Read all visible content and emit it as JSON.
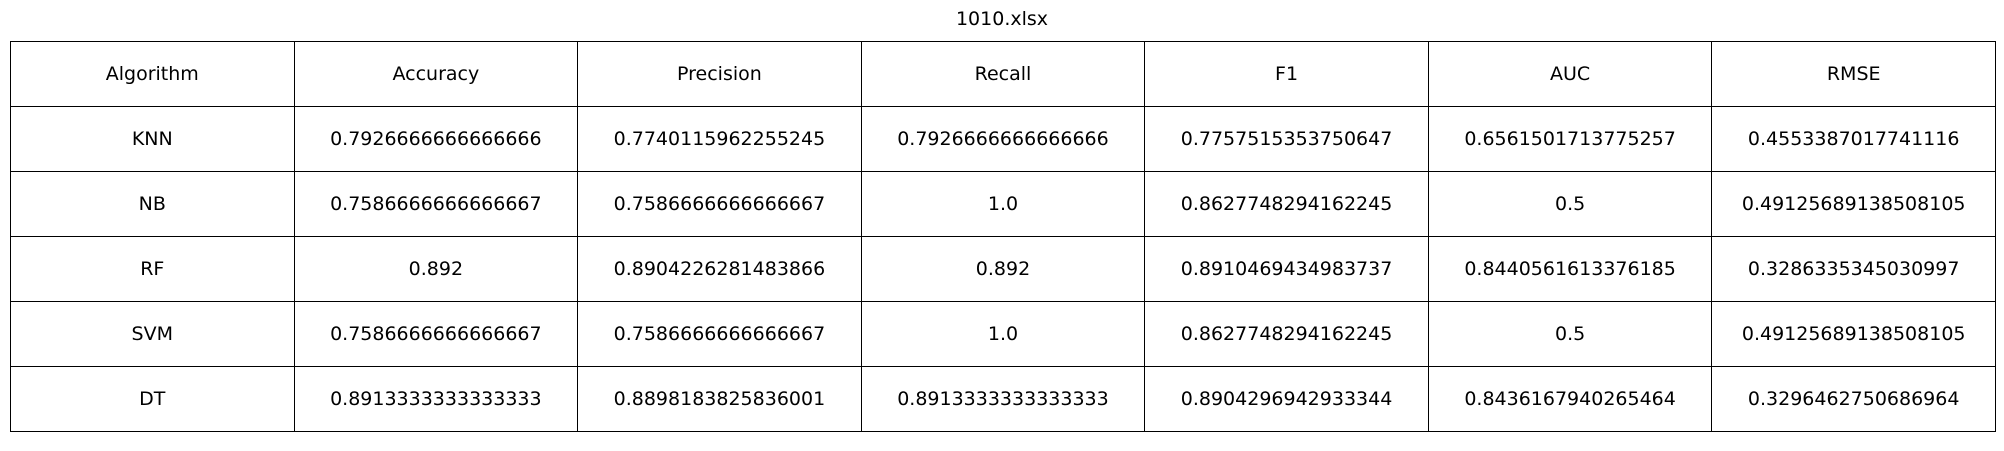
{
  "chart_data": {
    "type": "table",
    "title": "1010.xlsx",
    "columns": [
      "Algorithm",
      "Accuracy",
      "Precision",
      "Recall",
      "F1",
      "AUC",
      "RMSE"
    ],
    "rows": [
      [
        "KNN",
        "0.7926666666666666",
        "0.7740115962255245",
        "0.7926666666666666",
        "0.7757515353750647",
        "0.6561501713775257",
        "0.4553387017741116"
      ],
      [
        "NB",
        "0.7586666666666667",
        "0.7586666666666667",
        "1.0",
        "0.8627748294162245",
        "0.5",
        "0.49125689138508105"
      ],
      [
        "RF",
        "0.892",
        "0.8904226281483866",
        "0.892",
        "0.8910469434983737",
        "0.8440561613376185",
        "0.3286335345030997"
      ],
      [
        "SVM",
        "0.7586666666666667",
        "0.7586666666666667",
        "1.0",
        "0.8627748294162245",
        "0.5",
        "0.49125689138508105"
      ],
      [
        "DT",
        "0.8913333333333333",
        "0.8898183825836001",
        "0.8913333333333333",
        "0.8904296942933344",
        "0.8436167940265464",
        "0.3296462750686964"
      ]
    ]
  }
}
